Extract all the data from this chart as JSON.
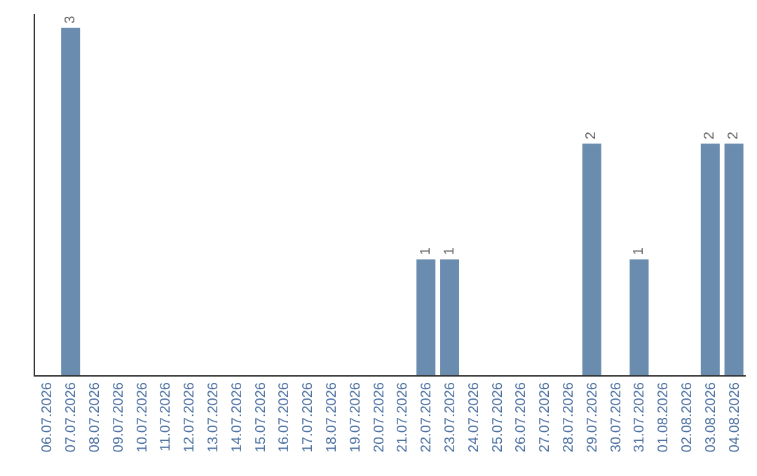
{
  "chart_data": {
    "type": "bar",
    "categories": [
      "06.07.2026",
      "07.07.2026",
      "08.07.2026",
      "09.07.2026",
      "10.07.2026",
      "11.07.2026",
      "12.07.2026",
      "13.07.2026",
      "14.07.2026",
      "15.07.2026",
      "16.07.2026",
      "17.07.2026",
      "18.07.2026",
      "19.07.2026",
      "20.07.2026",
      "21.07.2026",
      "22.07.2026",
      "23.07.2026",
      "24.07.2026",
      "25.07.2026",
      "26.07.2026",
      "27.07.2026",
      "28.07.2026",
      "29.07.2026",
      "30.07.2026",
      "31.07.2026",
      "01.08.2026",
      "02.08.2026",
      "03.08.2026",
      "04.08.2026"
    ],
    "values": [
      0,
      3,
      0,
      0,
      0,
      0,
      0,
      0,
      0,
      0,
      0,
      0,
      0,
      0,
      0,
      0,
      1,
      1,
      0,
      0,
      0,
      0,
      0,
      2,
      0,
      1,
      0,
      0,
      2,
      2
    ],
    "value_labels": [
      null,
      "3",
      null,
      null,
      null,
      null,
      null,
      null,
      null,
      null,
      null,
      null,
      null,
      null,
      null,
      null,
      "1",
      "1",
      null,
      null,
      null,
      null,
      null,
      "2",
      null,
      "1",
      null,
      null,
      "2",
      "2"
    ],
    "color": "#6a8caf",
    "grid": false,
    "legend": false
  }
}
